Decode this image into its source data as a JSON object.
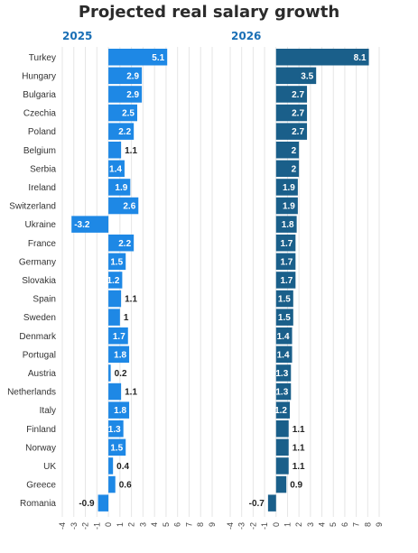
{
  "title": "Projected real salary growth",
  "colors": {
    "left": "#1e88e5",
    "right": "#1a5f8a",
    "panel_title": "#1a6fb5",
    "grid": "#e6e6e6",
    "label_inside": "#ffffff",
    "label_outside": "#222222"
  },
  "chart_data": [
    {
      "type": "bar",
      "orientation": "horizontal",
      "title": "2025",
      "categories": [
        "Turkey",
        "Hungary",
        "Bulgaria",
        "Czechia",
        "Poland",
        "Belgium",
        "Serbia",
        "Ireland",
        "Switzerland",
        "Ukraine",
        "France",
        "Germany",
        "Slovakia",
        "Spain",
        "Sweden",
        "Denmark",
        "Portugal",
        "Austria",
        "Netherlands",
        "Italy",
        "Finland",
        "Norway",
        "UK",
        "Greece",
        "Romania"
      ],
      "values": [
        5.1,
        2.9,
        2.9,
        2.5,
        2.2,
        1.1,
        1.4,
        1.9,
        2.6,
        -3.2,
        2.2,
        1.5,
        1.2,
        1.1,
        1,
        1.7,
        1.8,
        0.2,
        1.1,
        1.8,
        1.3,
        1.5,
        0.4,
        0.6,
        -0.9
      ],
      "xlim": [
        -4,
        9
      ],
      "ticks": [
        "-4",
        "-3",
        "-2",
        "-1",
        "0",
        "1",
        "2",
        "3",
        "4",
        "5",
        "6",
        "7",
        "8",
        "9"
      ],
      "grid": true
    },
    {
      "type": "bar",
      "orientation": "horizontal",
      "title": "2026",
      "categories": [
        "Turkey",
        "Hungary",
        "Bulgaria",
        "Czechia",
        "Poland",
        "Belgium",
        "Serbia",
        "Ireland",
        "Switzerland",
        "Ukraine",
        "France",
        "Germany",
        "Slovakia",
        "Spain",
        "Sweden",
        "Denmark",
        "Portugal",
        "Austria",
        "Netherlands",
        "Italy",
        "Finland",
        "Norway",
        "UK",
        "Greece",
        "Romania"
      ],
      "values": [
        8.1,
        3.5,
        2.7,
        2.7,
        2.7,
        2,
        2,
        1.9,
        1.9,
        1.8,
        1.7,
        1.7,
        1.7,
        1.5,
        1.5,
        1.4,
        1.4,
        1.3,
        1.3,
        1.2,
        1.1,
        1.1,
        1.1,
        0.9,
        -0.7
      ],
      "xlim": [
        -4,
        9
      ],
      "ticks": [
        "-4",
        "-3",
        "-2",
        "-1",
        "0",
        "1",
        "2",
        "3",
        "4",
        "5",
        "6",
        "7",
        "8",
        "9"
      ],
      "grid": true
    }
  ]
}
